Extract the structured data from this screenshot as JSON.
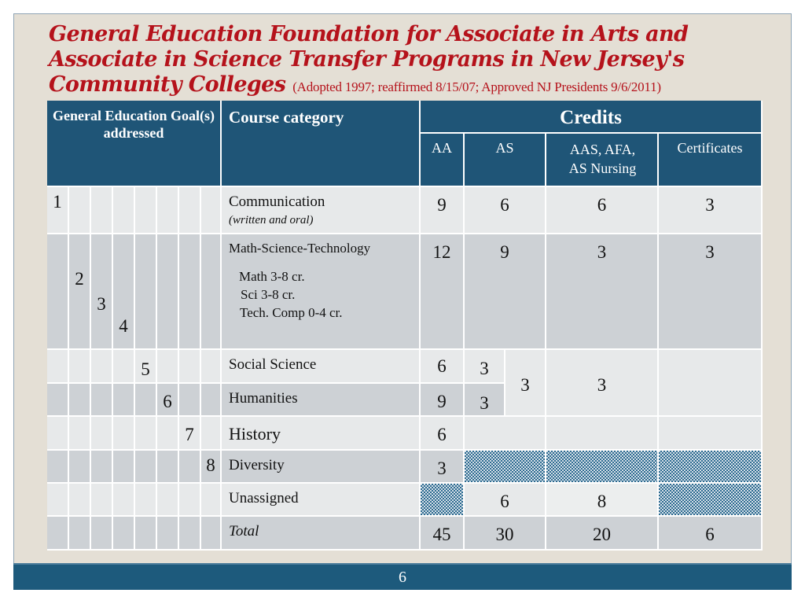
{
  "title": {
    "main": "General Education Foundation for Associate in Arts and Associate in Science Transfer Programs in New Jersey's Community Colleges",
    "note": "(Adopted 1997; reaffirmed 8/15/07; Approved NJ Presidents 9/6/2011)"
  },
  "table": {
    "headers": {
      "goals": "General Education Goal(s) addressed",
      "course": "Course category",
      "credits": "Credits",
      "aa": "AA",
      "as": "AS",
      "aas": "AAS, AFA, AS Nursing",
      "cert": "Certificates"
    },
    "rows": [
      {
        "goals": [
          "1"
        ],
        "category": "Communication",
        "subtitle": "(written and oral)",
        "aa": "9",
        "as": "6",
        "aas": "6",
        "cert": "3"
      },
      {
        "goals": [
          "2",
          "3",
          "4"
        ],
        "category": "Math-Science-Technology",
        "details": [
          "Math 3-8 cr.",
          "Sci  3-8 cr.",
          "Tech. Comp 0-4 cr."
        ],
        "aa": "12",
        "as": "9",
        "aas": "3",
        "cert": "3"
      },
      {
        "goals": [
          "5"
        ],
        "category": "Social Science",
        "aa": "6",
        "as": "3"
      },
      {
        "goals": [
          "6"
        ],
        "category": "Humanities",
        "aa": "9",
        "as": "3"
      },
      {
        "goals": [
          "7"
        ],
        "category": "History",
        "aa": "6"
      },
      {
        "goals": [
          "8"
        ],
        "category": "Diversity",
        "aa": "3",
        "as": "hatched",
        "aas": "hatched",
        "cert": "hatched"
      },
      {
        "goals": [],
        "category": "Unassigned",
        "aa": "hatched",
        "as": "6",
        "aas": "8",
        "cert": "hatched"
      },
      {
        "goals": [],
        "category": "Total",
        "aa": "45",
        "as": "30",
        "aas": "20",
        "cert": "6"
      }
    ],
    "merged_social_humanities": {
      "as": "3",
      "aas": "3",
      "cert": ""
    }
  },
  "footer": {
    "page_number": "6"
  },
  "colors": {
    "title": "#b5121b",
    "header": "#1f5577",
    "footer": "#1d5a7c",
    "background": "#e4dfd5"
  }
}
